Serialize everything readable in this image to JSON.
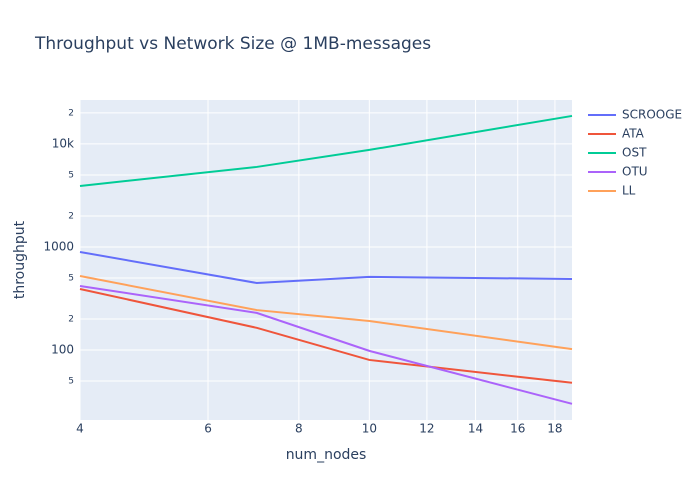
{
  "chart_data": {
    "type": "line",
    "title": "Throughput vs Network Size @ 1MB-messages",
    "x_label": "num_nodes",
    "y_label": "throughput",
    "x": [
      4,
      7,
      10,
      19
    ],
    "series": [
      {
        "name": "SCROOGE",
        "color": "#636efa",
        "values": [
          894,
          447,
          512,
          489
        ]
      },
      {
        "name": "ATA",
        "color": "#ef553b",
        "values": [
          391,
          164,
          80,
          48
        ]
      },
      {
        "name": "OST",
        "color": "#00cc96",
        "values": [
          3910,
          5980,
          8750,
          18700
        ]
      },
      {
        "name": "OTU",
        "color": "#ab63fa",
        "values": [
          418,
          229,
          98,
          30
        ]
      },
      {
        "name": "LL",
        "color": "#ffa15a",
        "values": [
          522,
          244,
          191,
          102
        ]
      }
    ],
    "log_x": true,
    "log_y": true,
    "grid": true,
    "xlim": [
      4,
      19
    ],
    "ylim": [
      20.9,
      26700
    ],
    "xticks": [
      4,
      6,
      8,
      10,
      12,
      14,
      16,
      18
    ],
    "yticks": [
      {
        "value": 50,
        "label": "5"
      },
      100,
      {
        "value": 200,
        "label": "2"
      },
      {
        "value": 500,
        "label": "5"
      },
      1000,
      {
        "value": 2000,
        "label": "2"
      },
      {
        "value": 5000,
        "label": "5"
      },
      {
        "value": 10000,
        "label": "10k"
      },
      {
        "value": 20000,
        "label": "2"
      }
    ],
    "legend": "right"
  }
}
